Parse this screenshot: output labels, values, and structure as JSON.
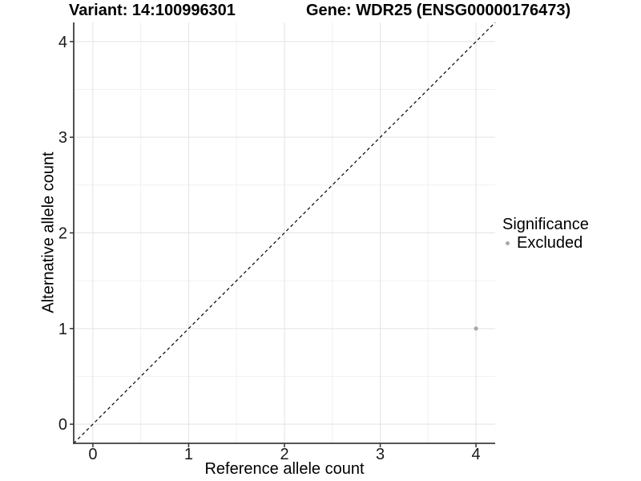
{
  "chart_data": {
    "type": "scatter",
    "title_left": "Variant: 14:100996301",
    "title_right": "Gene: WDR25 (ENSG00000176473)",
    "xlabel": "Reference allele count",
    "ylabel": "Alternative allele count",
    "xlim": [
      -0.2,
      4.2
    ],
    "ylim": [
      -0.2,
      4.2
    ],
    "xticks": [
      0,
      1,
      2,
      3,
      4
    ],
    "yticks": [
      0,
      1,
      2,
      3,
      4
    ],
    "grid": {
      "major": true,
      "minor": true,
      "minor_at_midpoints": true
    },
    "identity_line": {
      "style": "dashed",
      "slope": 1,
      "intercept": 0,
      "color": "#000000"
    },
    "series": [
      {
        "name": "Excluded",
        "color": "#a8a8a8",
        "points": [
          {
            "x": 4,
            "y": 1
          }
        ]
      }
    ],
    "legend": {
      "title": "Significance",
      "position": "right",
      "entries": [
        {
          "label": "Excluded",
          "color": "#a8a8a8"
        }
      ]
    },
    "colors": {
      "background": "#ffffff",
      "grid_major": "#e3e3e3",
      "grid_minor": "#f1f1f1",
      "axis_line": "#3d3d3d",
      "tick_mark": "#333333",
      "tick_label": "#1a1a1a"
    }
  }
}
